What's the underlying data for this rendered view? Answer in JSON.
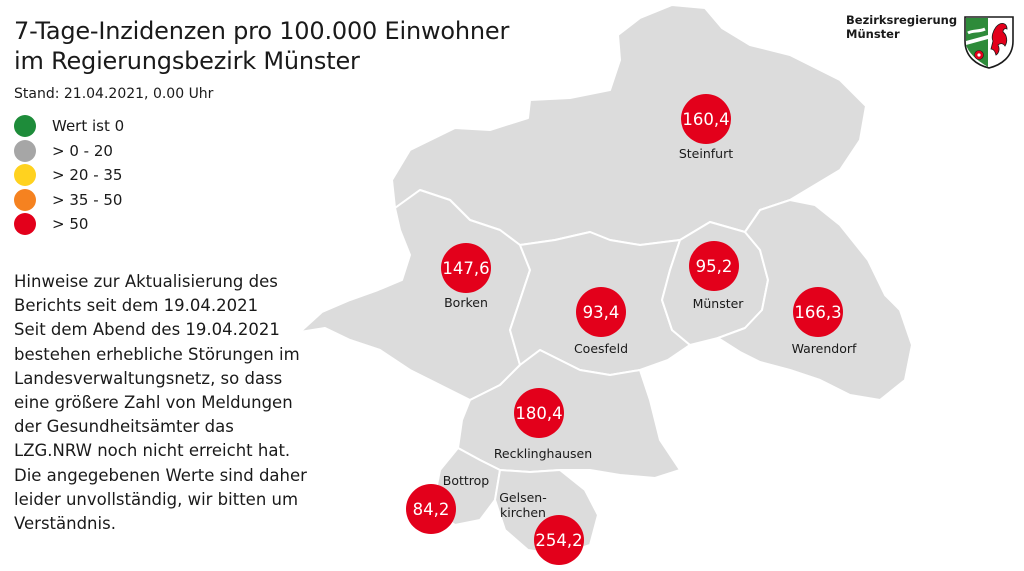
{
  "title_line1": "7-Tage-Inzidenzen pro 100.000 Einwohner",
  "title_line2": "im Regierungsbezirk Münster",
  "stand": "Stand: 21.04.2021, 0.00 Uhr",
  "legend": [
    {
      "label": "Wert ist 0",
      "color": "#1e8c3a"
    },
    {
      "label": "> 0 - 20",
      "color": "#a6a6a6"
    },
    {
      "label": "> 20 - 35",
      "color": "#ffd21f"
    },
    {
      "label": "> 35 - 50",
      "color": "#f58220"
    },
    {
      "label": "> 50",
      "color": "#e3001b"
    }
  ],
  "notice_lines": [
    "Hinweise zur Aktualisierung des",
    "Berichts seit dem 19.04.2021",
    "Seit dem Abend des 19.04.2021",
    "bestehen erhebliche Störungen im",
    "Landesverwaltungsnetz, so dass",
    "eine größere Zahl von Meldungen",
    "der Gesundheitsämter das",
    "LZG.NRW noch nicht erreicht hat.",
    "Die angegebenen Werte sind daher",
    "leider unvollständig, wir bitten um",
    "Verständnis."
  ],
  "org_line1": "Bezirksregierung",
  "org_line2": "Münster",
  "marker_color": "#e3001b",
  "districts": [
    {
      "name": "Steinfurt",
      "value": "160,4"
    },
    {
      "name": "Borken",
      "value": "147,6"
    },
    {
      "name": "Münster",
      "value": "95,2"
    },
    {
      "name": "Coesfeld",
      "value": "93,4"
    },
    {
      "name": "Warendorf",
      "value": "166,3"
    },
    {
      "name": "Recklinghausen",
      "value": "180,4"
    },
    {
      "name": "Bottrop",
      "value": "84,2"
    },
    {
      "name": "Gelsen-",
      "name2": "kirchen",
      "value": "254,2"
    }
  ]
}
